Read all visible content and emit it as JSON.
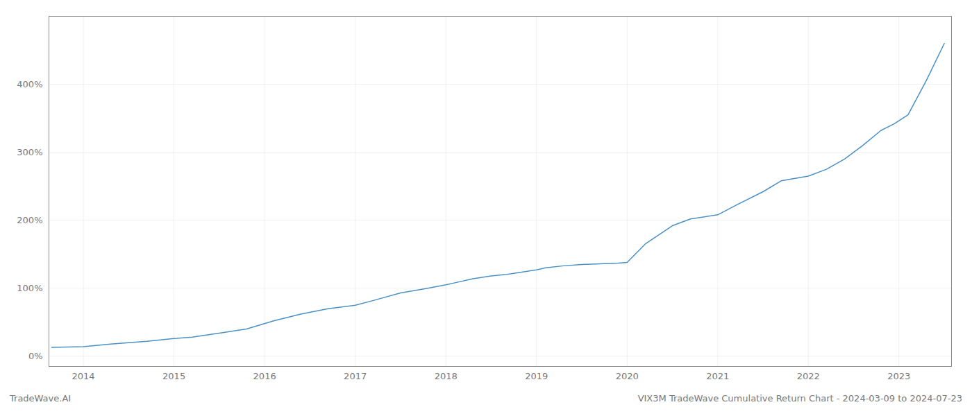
{
  "chart_data": {
    "type": "line",
    "title": "VIX3M TradeWave Cumulative Return Chart - 2024-03-09 to 2024-07-23",
    "annotations": [
      "TradeWave.AI"
    ],
    "x": [
      2013.65,
      2014.0,
      2014.3,
      2014.7,
      2015.0,
      2015.2,
      2015.5,
      2015.8,
      2016.1,
      2016.4,
      2016.7,
      2017.0,
      2017.2,
      2017.5,
      2017.8,
      2018.0,
      2018.1,
      2018.3,
      2018.5,
      2018.65,
      2018.75,
      2018.9,
      2019.0,
      2019.1,
      2019.3,
      2019.5,
      2019.7,
      2019.9,
      2020.0,
      2020.2,
      2020.5,
      2020.7,
      2021.0,
      2021.2,
      2021.5,
      2021.7,
      2022.0,
      2022.2,
      2022.4,
      2022.6,
      2022.8,
      2022.95,
      2023.1,
      2023.3,
      2023.5
    ],
    "values": [
      0.13,
      0.14,
      0.18,
      0.22,
      0.26,
      0.28,
      0.34,
      0.4,
      0.52,
      0.62,
      0.7,
      0.75,
      0.82,
      0.93,
      1.0,
      1.05,
      1.08,
      1.14,
      1.18,
      1.2,
      1.22,
      1.25,
      1.27,
      1.3,
      1.33,
      1.35,
      1.36,
      1.37,
      1.38,
      1.65,
      1.92,
      2.02,
      2.08,
      2.22,
      2.42,
      2.58,
      2.65,
      2.75,
      2.9,
      3.1,
      3.32,
      3.42,
      3.55,
      4.05,
      4.6
    ],
    "color": "#4a90c4",
    "xlim": [
      2013.62,
      2023.58
    ],
    "xticks": [
      2014,
      2015,
      2016,
      2017,
      2018,
      2019,
      2020,
      2021,
      2022,
      2023
    ],
    "ylim": [
      -0.15,
      5.0
    ],
    "yticks": [
      {
        "value": 0.0,
        "label": "0%"
      },
      {
        "value": 1.0,
        "label": "100%"
      },
      {
        "value": 2.0,
        "label": "200%"
      },
      {
        "value": 3.0,
        "label": "300%"
      },
      {
        "value": 4.0,
        "label": "400%"
      }
    ],
    "grid": true
  }
}
